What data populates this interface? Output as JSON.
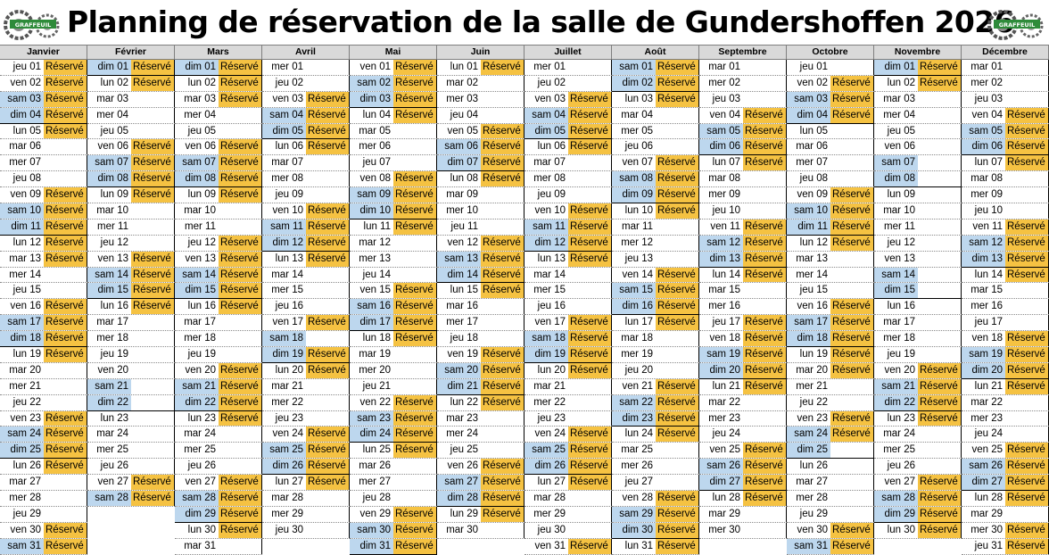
{
  "title": "Planning de réservation de la salle de Gundershoffen 2026",
  "logo_text": "GRAFFEUIL",
  "reserved_label": "Réservé",
  "colors": {
    "weekend": "#bdd7ee",
    "reserved": "#f5c242",
    "header": "#d9d9d9"
  },
  "months": [
    {
      "name": "Janvier",
      "start": "jeu",
      "days": 31,
      "reserved": [
        1,
        2,
        3,
        4,
        5,
        9,
        10,
        11,
        12,
        13,
        16,
        17,
        18,
        19,
        23,
        24,
        25,
        26,
        30,
        31
      ]
    },
    {
      "name": "Février",
      "start": "dim",
      "days": 28,
      "reserved": [
        1,
        2,
        6,
        7,
        8,
        9,
        13,
        14,
        15,
        16,
        27,
        28
      ]
    },
    {
      "name": "Mars",
      "start": "dim",
      "days": 31,
      "reserved": [
        1,
        2,
        3,
        6,
        7,
        8,
        9,
        12,
        13,
        14,
        15,
        16,
        20,
        21,
        22,
        23,
        27,
        28,
        29,
        30
      ]
    },
    {
      "name": "Avril",
      "start": "mer",
      "days": 30,
      "reserved": [
        3,
        4,
        5,
        6,
        10,
        11,
        12,
        13,
        17,
        19,
        20,
        24,
        25,
        26,
        27
      ]
    },
    {
      "name": "Mai",
      "start": "ven",
      "days": 31,
      "reserved": [
        1,
        2,
        3,
        4,
        8,
        9,
        10,
        11,
        15,
        16,
        17,
        18,
        22,
        23,
        24,
        25,
        29,
        30,
        31
      ]
    },
    {
      "name": "Juin",
      "start": "lun",
      "days": 30,
      "reserved": [
        1,
        5,
        6,
        7,
        8,
        12,
        13,
        14,
        15,
        19,
        20,
        21,
        22,
        26,
        27,
        28,
        29
      ]
    },
    {
      "name": "Juillet",
      "start": "mer",
      "days": 31,
      "reserved": [
        3,
        4,
        5,
        6,
        10,
        11,
        12,
        13,
        17,
        18,
        19,
        20,
        24,
        25,
        26,
        27,
        31
      ]
    },
    {
      "name": "Août",
      "start": "sam",
      "days": 31,
      "reserved": [
        1,
        2,
        3,
        7,
        8,
        9,
        10,
        14,
        15,
        16,
        17,
        21,
        22,
        23,
        24,
        28,
        29,
        30,
        31
      ]
    },
    {
      "name": "Septembre",
      "start": "mar",
      "days": 30,
      "reserved": [
        4,
        5,
        6,
        7,
        11,
        12,
        13,
        14,
        17,
        18,
        19,
        20,
        21,
        25,
        26,
        27,
        28
      ]
    },
    {
      "name": "Octobre",
      "start": "jeu",
      "days": 31,
      "reserved": [
        2,
        3,
        4,
        9,
        10,
        11,
        12,
        16,
        17,
        18,
        19,
        20,
        23,
        24,
        30,
        31
      ]
    },
    {
      "name": "Novembre",
      "start": "dim",
      "days": 30,
      "reserved": [
        1,
        2,
        20,
        21,
        22,
        23,
        27,
        28,
        29,
        30
      ]
    },
    {
      "name": "Décembre",
      "start": "mar",
      "days": 31,
      "reserved": [
        4,
        5,
        6,
        7,
        11,
        12,
        13,
        14,
        18,
        19,
        20,
        21,
        25,
        26,
        27,
        28,
        30,
        31
      ]
    }
  ]
}
